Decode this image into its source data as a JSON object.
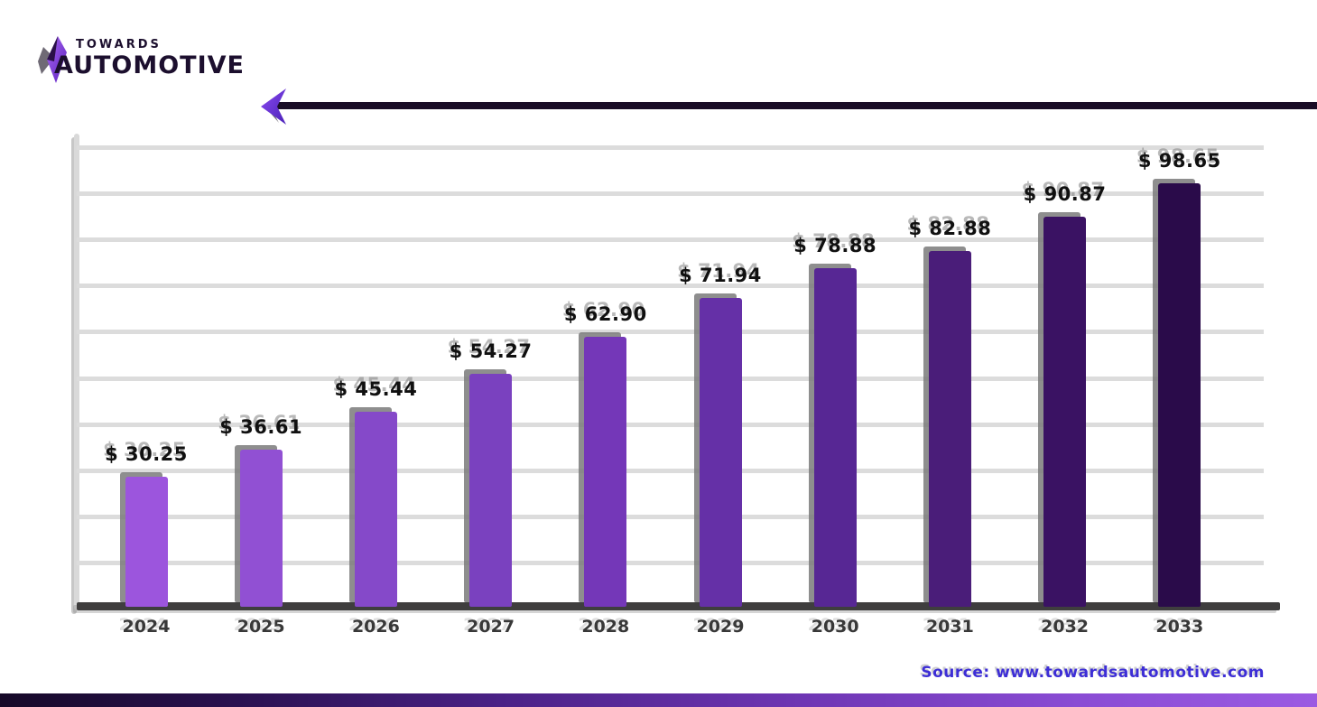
{
  "logo": {
    "top_text": "TOWARDS",
    "bottom_text": "AUTOMOTIVE"
  },
  "source": {
    "label": "Source: www.towardsautomotive.com"
  },
  "chart_data": {
    "type": "bar",
    "title": "",
    "categories": [
      "2024",
      "2025",
      "2026",
      "2027",
      "2028",
      "2029",
      "2030",
      "2031",
      "2032",
      "2033"
    ],
    "values": [
      30.25,
      36.61,
      45.44,
      54.27,
      62.9,
      71.94,
      78.88,
      82.88,
      90.87,
      98.65
    ],
    "value_labels": [
      "$ 30.25",
      "$ 36.61",
      "$ 45.44",
      "$ 54.27",
      "$ 62.90",
      "$ 71.94",
      "$ 78.88",
      "$ 82.88",
      "$ 90.87",
      "$ 98.65"
    ],
    "bar_colors": [
      "#9C55DD",
      "#9150D3",
      "#8549C9",
      "#7A41BF",
      "#7437B8",
      "#6530A7",
      "#572794",
      "#4A1D79",
      "#3A1263",
      "#2A0B4A"
    ],
    "xlabel": "",
    "ylabel": "",
    "ylim": [
      0,
      107.5
    ],
    "grid": true,
    "gridline_count": 10,
    "legend": "none",
    "currency_prefix": "$"
  },
  "colors": {
    "bar_light": "#9C55DD",
    "bar_dark": "#2A0B4A",
    "gridline": "#dcdcdc",
    "baseline": "#3f3e3e",
    "value_label": "#101010",
    "axis_label": "#383838",
    "source_text": "#3d2ed6",
    "trend_line": "#190d26",
    "accent_purple": "#7a3bdd"
  }
}
